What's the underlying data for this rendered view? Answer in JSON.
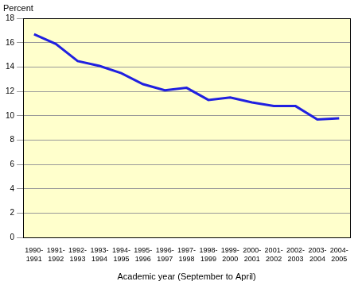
{
  "chart_data": {
    "type": "line",
    "ylabel": "Percent",
    "xlabel": "Academic year (September to April)",
    "categories": [
      "1990-1991",
      "1991-1992",
      "1992-1993",
      "1993-1994",
      "1994-1995",
      "1995-1996",
      "1996-1997",
      "1997-1998",
      "1998-1999",
      "1999-2000",
      "2000-2001",
      "2001-2002",
      "2002-2003",
      "2003-2004",
      "2004-2005"
    ],
    "values": [
      16.7,
      15.9,
      14.5,
      14.1,
      13.5,
      12.6,
      12.1,
      12.3,
      11.3,
      11.5,
      11.1,
      10.8,
      10.8,
      9.7,
      9.8
    ],
    "color": "#2020e0",
    "ylim": [
      0,
      18
    ],
    "yticks": [
      0,
      2,
      4,
      6,
      8,
      10,
      12,
      14,
      16,
      18
    ],
    "grid": true
  }
}
